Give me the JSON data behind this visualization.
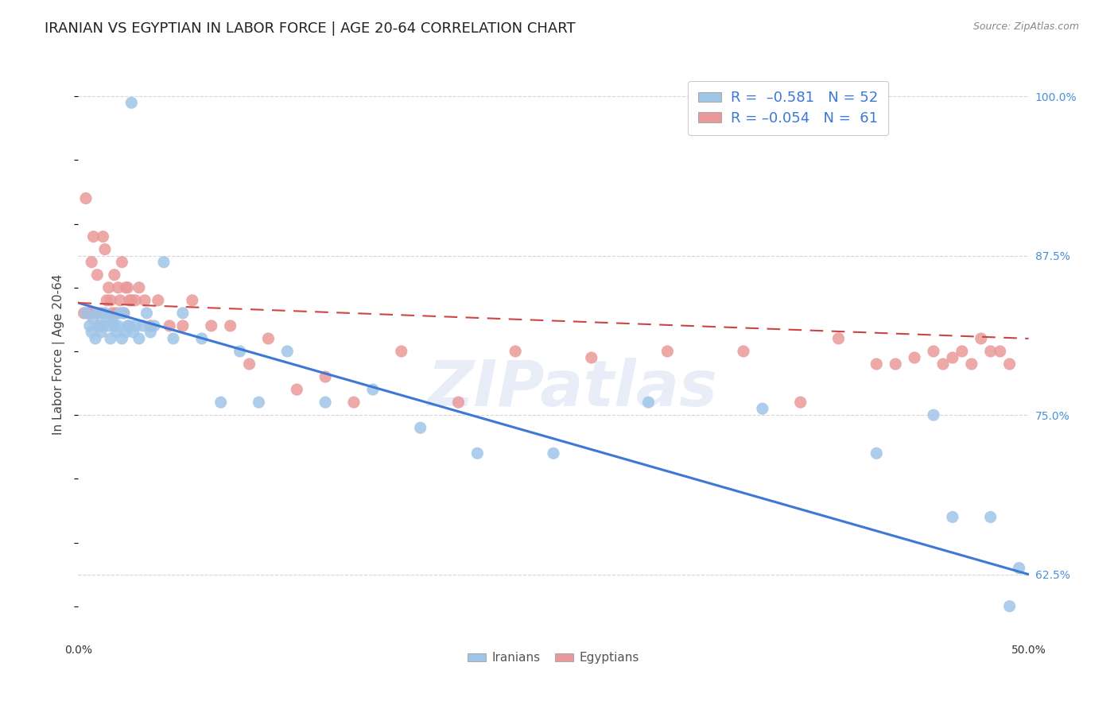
{
  "title": "IRANIAN VS EGYPTIAN IN LABOR FORCE | AGE 20-64 CORRELATION CHART",
  "source": "Source: ZipAtlas.com",
  "ylabel": "In Labor Force | Age 20-64",
  "xlim": [
    0.0,
    0.5
  ],
  "ylim": [
    0.575,
    1.02
  ],
  "xticks": [
    0.0,
    0.1,
    0.2,
    0.3,
    0.4,
    0.5
  ],
  "xticklabels": [
    "0.0%",
    "",
    "",
    "",
    "",
    "50.0%"
  ],
  "yticks_right": [
    0.625,
    0.75,
    0.875,
    1.0
  ],
  "ytick_right_labels": [
    "62.5%",
    "75.0%",
    "87.5%",
    "100.0%"
  ],
  "blue_color": "#9fc5e8",
  "pink_color": "#ea9999",
  "blue_line_color": "#3c78d8",
  "pink_line_color": "#cc4444",
  "background_color": "#ffffff",
  "watermark": "ZIPatlas",
  "grid_color": "#cccccc",
  "blue_scatter_x": [
    0.004,
    0.006,
    0.007,
    0.008,
    0.009,
    0.01,
    0.011,
    0.012,
    0.013,
    0.014,
    0.015,
    0.016,
    0.017,
    0.018,
    0.019,
    0.02,
    0.021,
    0.022,
    0.023,
    0.024,
    0.025,
    0.026,
    0.027,
    0.028,
    0.029,
    0.03,
    0.032,
    0.034,
    0.036,
    0.038,
    0.04,
    0.045,
    0.05,
    0.055,
    0.065,
    0.075,
    0.085,
    0.095,
    0.11,
    0.13,
    0.155,
    0.18,
    0.21,
    0.25,
    0.3,
    0.36,
    0.42,
    0.45,
    0.46,
    0.48,
    0.49,
    0.495
  ],
  "blue_scatter_y": [
    0.83,
    0.82,
    0.815,
    0.825,
    0.81,
    0.83,
    0.82,
    0.815,
    0.82,
    0.83,
    0.825,
    0.82,
    0.81,
    0.825,
    0.82,
    0.815,
    0.82,
    0.83,
    0.81,
    0.83,
    0.815,
    0.82,
    0.82,
    0.995,
    0.815,
    0.82,
    0.81,
    0.82,
    0.83,
    0.815,
    0.82,
    0.87,
    0.81,
    0.83,
    0.81,
    0.76,
    0.8,
    0.76,
    0.8,
    0.76,
    0.77,
    0.74,
    0.72,
    0.72,
    0.76,
    0.755,
    0.72,
    0.75,
    0.67,
    0.67,
    0.6,
    0.63
  ],
  "pink_scatter_x": [
    0.003,
    0.004,
    0.005,
    0.006,
    0.007,
    0.008,
    0.009,
    0.01,
    0.011,
    0.012,
    0.013,
    0.014,
    0.015,
    0.016,
    0.017,
    0.018,
    0.019,
    0.02,
    0.021,
    0.022,
    0.023,
    0.024,
    0.025,
    0.026,
    0.027,
    0.028,
    0.03,
    0.032,
    0.035,
    0.038,
    0.042,
    0.048,
    0.055,
    0.06,
    0.07,
    0.08,
    0.09,
    0.1,
    0.115,
    0.13,
    0.145,
    0.17,
    0.2,
    0.23,
    0.27,
    0.31,
    0.35,
    0.38,
    0.4,
    0.42,
    0.43,
    0.44,
    0.45,
    0.455,
    0.46,
    0.465,
    0.47,
    0.475,
    0.48,
    0.485,
    0.49
  ],
  "pink_scatter_y": [
    0.83,
    0.92,
    0.83,
    0.83,
    0.87,
    0.89,
    0.83,
    0.86,
    0.82,
    0.83,
    0.89,
    0.88,
    0.84,
    0.85,
    0.84,
    0.83,
    0.86,
    0.83,
    0.85,
    0.84,
    0.87,
    0.83,
    0.85,
    0.85,
    0.84,
    0.84,
    0.84,
    0.85,
    0.84,
    0.82,
    0.84,
    0.82,
    0.82,
    0.84,
    0.82,
    0.82,
    0.79,
    0.81,
    0.77,
    0.78,
    0.76,
    0.8,
    0.76,
    0.8,
    0.795,
    0.8,
    0.8,
    0.76,
    0.81,
    0.79,
    0.79,
    0.795,
    0.8,
    0.79,
    0.795,
    0.8,
    0.79,
    0.81,
    0.8,
    0.8,
    0.79
  ],
  "blue_trendline_x": [
    0.0,
    0.5
  ],
  "blue_trendline_y": [
    0.838,
    0.625
  ],
  "pink_trendline_x": [
    0.0,
    0.5
  ],
  "pink_trendline_y": [
    0.838,
    0.81
  ],
  "title_fontsize": 13,
  "axis_label_fontsize": 11,
  "tick_fontsize": 10,
  "legend_fontsize": 13
}
